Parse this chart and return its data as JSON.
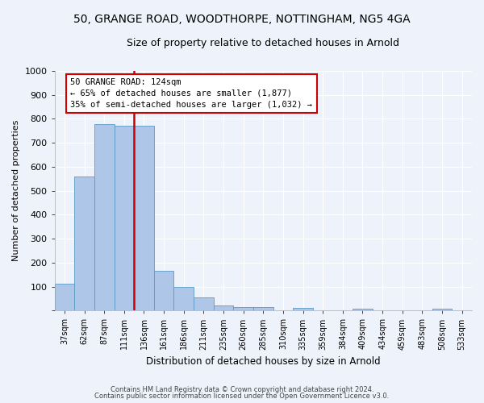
{
  "title1": "50, GRANGE ROAD, WOODTHORPE, NOTTINGHAM, NG5 4GA",
  "title2": "Size of property relative to detached houses in Arnold",
  "xlabel": "Distribution of detached houses by size in Arnold",
  "ylabel": "Number of detached properties",
  "categories": [
    "37sqm",
    "62sqm",
    "87sqm",
    "111sqm",
    "136sqm",
    "161sqm",
    "186sqm",
    "211sqm",
    "235sqm",
    "260sqm",
    "285sqm",
    "310sqm",
    "335sqm",
    "359sqm",
    "384sqm",
    "409sqm",
    "434sqm",
    "459sqm",
    "483sqm",
    "508sqm",
    "533sqm"
  ],
  "values": [
    113,
    558,
    778,
    770,
    770,
    165,
    100,
    55,
    20,
    14,
    13,
    0,
    12,
    0,
    0,
    9,
    0,
    0,
    0,
    9,
    0
  ],
  "bar_color": "#aec6e8",
  "bar_edge_color": "#5a9ac5",
  "property_line_color": "#cc0000",
  "annotation_line1": "50 GRANGE ROAD: 124sqm",
  "annotation_line2": "← 65% of detached houses are smaller (1,877)",
  "annotation_line3": "35% of semi-detached houses are larger (1,032) →",
  "annotation_box_color": "#cc0000",
  "footer1": "Contains HM Land Registry data © Crown copyright and database right 2024.",
  "footer2": "Contains public sector information licensed under the Open Government Licence v3.0.",
  "ylim": [
    0,
    1000
  ],
  "yticks": [
    0,
    100,
    200,
    300,
    400,
    500,
    600,
    700,
    800,
    900,
    1000
  ],
  "background_color": "#eef2fa",
  "grid_color": "#ffffff",
  "title1_fontsize": 10,
  "title2_fontsize": 9
}
